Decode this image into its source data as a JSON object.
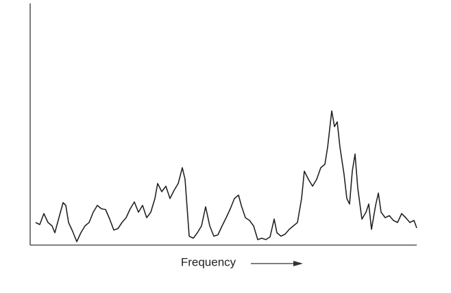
{
  "chart_data": {
    "type": "line",
    "x_label": "Frequency",
    "color": "#222222",
    "xlim": [
      0,
      564
    ],
    "ylim": [
      0,
      353
    ],
    "x": [
      8,
      14,
      20,
      26,
      32,
      36,
      42,
      48,
      52,
      56,
      62,
      68,
      74,
      80,
      86,
      92,
      98,
      104,
      110,
      116,
      122,
      128,
      134,
      140,
      146,
      152,
      158,
      164,
      170,
      176,
      182,
      186,
      192,
      198,
      204,
      210,
      216,
      222,
      226,
      232,
      238,
      244,
      250,
      256,
      262,
      268,
      274,
      280,
      286,
      292,
      298,
      304,
      308,
      314,
      320,
      326,
      332,
      338,
      344,
      350,
      356,
      360,
      366,
      372,
      378,
      384,
      390,
      396,
      400,
      406,
      412,
      418,
      424,
      430,
      434,
      440,
      444,
      448,
      452,
      458,
      462,
      466,
      470,
      474,
      478,
      484,
      490,
      494,
      498,
      504,
      508,
      512,
      518,
      524,
      530,
      536,
      542,
      548,
      554,
      560,
      564
    ],
    "values": [
      33,
      30,
      46,
      33,
      28,
      18,
      40,
      62,
      58,
      33,
      20,
      5,
      18,
      28,
      33,
      48,
      58,
      53,
      52,
      38,
      22,
      24,
      33,
      40,
      53,
      63,
      48,
      58,
      40,
      48,
      68,
      90,
      78,
      86,
      68,
      80,
      90,
      113,
      96,
      13,
      10,
      18,
      28,
      56,
      28,
      13,
      15,
      28,
      40,
      53,
      68,
      73,
      58,
      40,
      36,
      28,
      8,
      10,
      8,
      12,
      38,
      18,
      13,
      16,
      23,
      28,
      33,
      68,
      108,
      96,
      86,
      96,
      113,
      118,
      143,
      196,
      173,
      180,
      143,
      103,
      68,
      60,
      108,
      133,
      83,
      38,
      48,
      60,
      23,
      58,
      76,
      48,
      40,
      43,
      36,
      33,
      46,
      40,
      33,
      36,
      25
    ]
  }
}
